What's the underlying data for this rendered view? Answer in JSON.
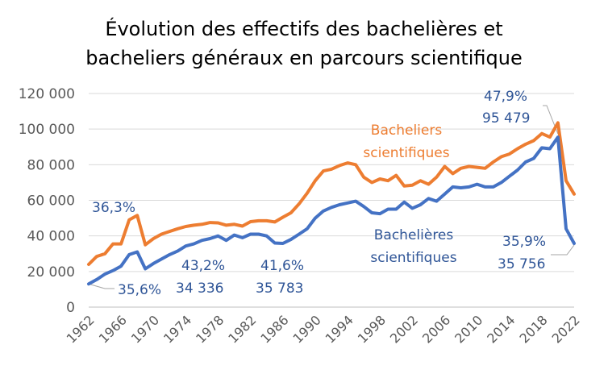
{
  "chart_data": {
    "type": "line",
    "title_lines": [
      "Évolution des effectifs des bachelières et",
      "bacheliers généraux en parcours scientifique"
    ],
    "xlim": [
      1962,
      2022
    ],
    "ylim": [
      0,
      120000
    ],
    "grid": true,
    "y_ticks": [
      {
        "value": 0,
        "label": "0"
      },
      {
        "value": 20000,
        "label": "20 000"
      },
      {
        "value": 40000,
        "label": "40 000"
      },
      {
        "value": 60000,
        "label": "60 000"
      },
      {
        "value": 80000,
        "label": "80 000"
      },
      {
        "value": 100000,
        "label": "100 000"
      },
      {
        "value": 120000,
        "label": "120 000"
      }
    ],
    "x_ticks": [
      "1962",
      "1966",
      "1970",
      "1974",
      "1978",
      "1982",
      "1986",
      "1990",
      "1994",
      "1998",
      "2002",
      "2006",
      "2010",
      "2014",
      "2018",
      "2022"
    ],
    "x": [
      1962,
      1963,
      1964,
      1965,
      1966,
      1967,
      1968,
      1969,
      1970,
      1971,
      1972,
      1973,
      1974,
      1975,
      1976,
      1977,
      1978,
      1979,
      1980,
      1981,
      1982,
      1983,
      1984,
      1985,
      1986,
      1987,
      1988,
      1989,
      1990,
      1991,
      1992,
      1993,
      1994,
      1995,
      1996,
      1997,
      1998,
      1999,
      2000,
      2001,
      2002,
      2003,
      2004,
      2005,
      2006,
      2007,
      2008,
      2009,
      2010,
      2011,
      2012,
      2013,
      2014,
      2015,
      2016,
      2017,
      2018,
      2019,
      2020,
      2021,
      2022
    ],
    "series": [
      {
        "name": "Bacheliers scientifiques",
        "color": "#ED7D31",
        "values": [
          24000,
          28500,
          30000,
          35500,
          35500,
          49000,
          51500,
          35000,
          38500,
          41000,
          42500,
          44000,
          45300,
          46000,
          46500,
          47500,
          47300,
          46000,
          46500,
          45500,
          48000,
          48500,
          48500,
          47800,
          50500,
          53000,
          58000,
          64000,
          71000,
          76500,
          77500,
          79500,
          81000,
          80000,
          73000,
          70000,
          72000,
          71000,
          74000,
          68000,
          68500,
          71000,
          69000,
          73000,
          79000,
          75000,
          78000,
          79000,
          78500,
          78000,
          81500,
          84500,
          86000,
          89000,
          91500,
          93500,
          97500,
          95500,
          103500,
          71000,
          63500
        ]
      },
      {
        "name": "Bachelières scientifiques",
        "color": "#4472C4",
        "values": [
          13000,
          15500,
          18500,
          20500,
          23000,
          29500,
          31000,
          21500,
          24500,
          27000,
          29500,
          31500,
          34336,
          35500,
          37500,
          38500,
          40000,
          37500,
          40500,
          39000,
          41000,
          41000,
          40000,
          36000,
          35783,
          38000,
          41000,
          44000,
          50000,
          54000,
          56000,
          57500,
          58500,
          59500,
          56500,
          53000,
          52500,
          55000,
          55000,
          59000,
          55500,
          57500,
          61000,
          59500,
          63500,
          67500,
          67000,
          67500,
          69000,
          67500,
          67500,
          70000,
          73500,
          77000,
          81500,
          83500,
          89500,
          89000,
          95479,
          44000,
          35756
        ]
      }
    ],
    "annotations": [
      {
        "series": 0,
        "x": 1968,
        "text": "36,3%"
      },
      {
        "series": 1,
        "x": 1962,
        "text": "35,6%"
      },
      {
        "series": 1,
        "x": 1974,
        "lines": [
          "43,2%",
          "34 336"
        ]
      },
      {
        "series": 1,
        "x": 1986,
        "lines": [
          "41,6%",
          "35 783"
        ]
      },
      {
        "series": 1,
        "x": 2020,
        "lines": [
          "47,9%",
          "95 479"
        ]
      },
      {
        "series": 1,
        "x": 2022,
        "lines": [
          "35,9%",
          "35 756"
        ]
      },
      {
        "series": 0,
        "label": [
          "Bacheliers",
          "scientifiques"
        ]
      },
      {
        "series": 1,
        "label": [
          "Bachelières",
          "scientifiques"
        ]
      }
    ]
  }
}
